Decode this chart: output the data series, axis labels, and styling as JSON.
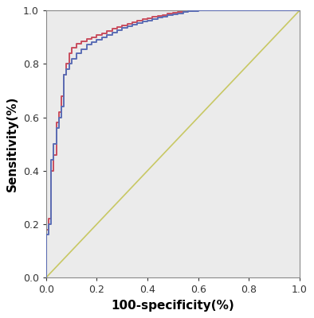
{
  "title": "",
  "xlabel": "100-specificity(%)",
  "ylabel": "Sensitivity(%)",
  "xlim": [
    0.0,
    1.0
  ],
  "ylim": [
    0.0,
    1.0
  ],
  "xticks": [
    0.0,
    0.2,
    0.4,
    0.6,
    0.8,
    1.0
  ],
  "yticks": [
    0.0,
    0.2,
    0.4,
    0.6,
    0.8,
    1.0
  ],
  "bg_color": "#ebebeb",
  "fig_bg_color": "#ffffff",
  "ref_line_color": "#c8c864",
  "blue_color": "#5b6db5",
  "red_color": "#c94d5e",
  "blue_curve_x": [
    0.0,
    0.0,
    0.01,
    0.01,
    0.02,
    0.02,
    0.03,
    0.03,
    0.04,
    0.04,
    0.05,
    0.05,
    0.06,
    0.06,
    0.07,
    0.07,
    0.08,
    0.08,
    0.09,
    0.09,
    0.1,
    0.1,
    0.12,
    0.12,
    0.14,
    0.14,
    0.16,
    0.16,
    0.18,
    0.18,
    0.2,
    0.2,
    0.22,
    0.22,
    0.24,
    0.24,
    0.26,
    0.26,
    0.28,
    0.28,
    0.3,
    0.3,
    0.32,
    0.32,
    0.34,
    0.34,
    0.36,
    0.36,
    0.38,
    0.38,
    0.4,
    0.4,
    0.42,
    0.42,
    0.44,
    0.44,
    0.46,
    0.46,
    0.48,
    0.48,
    0.5,
    0.5,
    0.52,
    0.52,
    0.54,
    0.54,
    0.56,
    0.56,
    0.58,
    0.58,
    0.6,
    0.6,
    0.62,
    0.62,
    0.64,
    0.64,
    0.66,
    1.0
  ],
  "blue_curve_y": [
    0.0,
    0.16,
    0.16,
    0.2,
    0.2,
    0.44,
    0.44,
    0.5,
    0.5,
    0.56,
    0.56,
    0.6,
    0.6,
    0.64,
    0.64,
    0.76,
    0.76,
    0.78,
    0.78,
    0.8,
    0.8,
    0.82,
    0.82,
    0.84,
    0.84,
    0.856,
    0.856,
    0.874,
    0.874,
    0.882,
    0.882,
    0.89,
    0.89,
    0.9,
    0.9,
    0.91,
    0.91,
    0.918,
    0.918,
    0.926,
    0.926,
    0.934,
    0.934,
    0.94,
    0.94,
    0.946,
    0.946,
    0.952,
    0.952,
    0.958,
    0.958,
    0.963,
    0.963,
    0.968,
    0.968,
    0.973,
    0.973,
    0.978,
    0.978,
    0.982,
    0.982,
    0.986,
    0.986,
    0.99,
    0.99,
    0.994,
    0.994,
    0.997,
    0.997,
    0.999,
    0.999,
    1.0,
    1.0,
    1.0,
    1.0,
    1.0,
    1.0,
    1.0
  ],
  "red_curve_x": [
    0.0,
    0.0,
    0.01,
    0.01,
    0.02,
    0.02,
    0.03,
    0.03,
    0.04,
    0.04,
    0.05,
    0.05,
    0.06,
    0.06,
    0.07,
    0.07,
    0.08,
    0.08,
    0.09,
    0.09,
    0.1,
    0.1,
    0.12,
    0.12,
    0.14,
    0.14,
    0.16,
    0.16,
    0.18,
    0.18,
    0.2,
    0.2,
    0.22,
    0.22,
    0.24,
    0.24,
    0.26,
    0.26,
    0.28,
    0.28,
    0.3,
    0.3,
    0.32,
    0.32,
    0.34,
    0.34,
    0.36,
    0.36,
    0.38,
    0.38,
    0.4,
    0.4,
    0.42,
    0.42,
    0.44,
    0.44,
    0.46,
    0.46,
    0.48,
    0.48,
    0.5,
    0.5,
    0.52,
    0.52,
    0.54,
    0.54,
    0.56,
    0.56,
    0.58,
    0.58,
    0.6,
    0.6,
    0.62,
    0.62,
    0.64,
    0.64,
    0.66,
    1.0
  ],
  "red_curve_y": [
    0.0,
    0.18,
    0.18,
    0.22,
    0.22,
    0.4,
    0.4,
    0.46,
    0.46,
    0.58,
    0.58,
    0.62,
    0.62,
    0.68,
    0.68,
    0.76,
    0.76,
    0.8,
    0.8,
    0.84,
    0.84,
    0.862,
    0.862,
    0.876,
    0.876,
    0.886,
    0.886,
    0.894,
    0.894,
    0.9,
    0.9,
    0.908,
    0.908,
    0.916,
    0.916,
    0.924,
    0.924,
    0.932,
    0.932,
    0.938,
    0.938,
    0.944,
    0.944,
    0.95,
    0.95,
    0.956,
    0.956,
    0.962,
    0.962,
    0.967,
    0.967,
    0.972,
    0.972,
    0.976,
    0.976,
    0.98,
    0.98,
    0.984,
    0.984,
    0.988,
    0.988,
    0.991,
    0.991,
    0.994,
    0.994,
    0.997,
    0.997,
    0.999,
    0.999,
    1.0,
    1.0,
    1.0,
    1.0,
    1.0,
    1.0,
    1.0,
    1.0,
    1.0
  ],
  "tick_fontsize": 9,
  "label_fontsize": 11,
  "label_fontweight": "bold"
}
